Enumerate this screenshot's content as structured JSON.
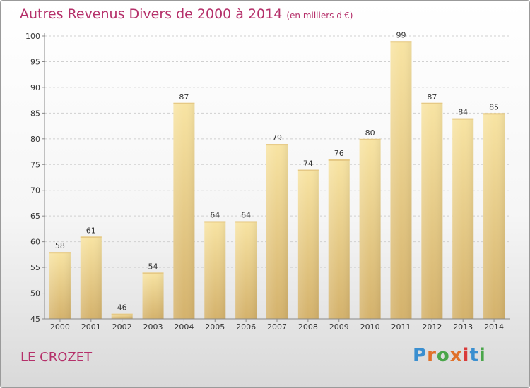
{
  "header": {
    "title": "Autres Revenus Divers de 2000 à 2014",
    "subtitle": "(en milliers d'€)"
  },
  "footer": {
    "location": "LE CROZET",
    "brand": "Proxiti",
    "brand_colors": [
      "#3a8fd0",
      "#e0712a",
      "#4aa64a",
      "#e0712a",
      "#d93a3a",
      "#3a8fd0",
      "#4aa64a"
    ]
  },
  "colors": {
    "title": "#b5306a",
    "bar_light": "#f7e2a0",
    "bar_dark": "#d6b773",
    "grid": "#d0d0d0"
  },
  "chart_data": {
    "type": "bar",
    "title": "Autres Revenus Divers de 2000 à 2014",
    "subtitle": "(en milliers d'€)",
    "categories": [
      "2000",
      "2001",
      "2002",
      "2003",
      "2004",
      "2005",
      "2006",
      "2007",
      "2008",
      "2009",
      "2010",
      "2011",
      "2012",
      "2013",
      "2014"
    ],
    "values": [
      58,
      61,
      46,
      54,
      87,
      64,
      64,
      79,
      74,
      76,
      80,
      99,
      87,
      84,
      85
    ],
    "xlabel": "",
    "ylabel": "",
    "ylim": [
      45,
      100
    ],
    "yticks": [
      45,
      50,
      55,
      60,
      65,
      70,
      75,
      80,
      85,
      90,
      95,
      100
    ],
    "grid": true,
    "data_labels": true
  }
}
